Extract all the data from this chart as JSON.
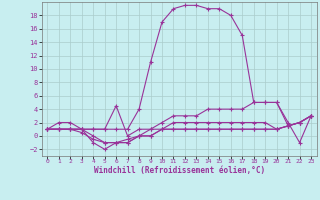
{
  "xlabel": "Windchill (Refroidissement éolien,°C)",
  "background_color": "#c8eef0",
  "line_color": "#993399",
  "grid_color": "#aacccc",
  "xmin": -0.5,
  "xmax": 23.5,
  "ymin": -3,
  "ymax": 20,
  "yticks": [
    -2,
    0,
    2,
    4,
    6,
    8,
    10,
    12,
    14,
    16,
    18
  ],
  "xticks": [
    0,
    1,
    2,
    3,
    4,
    5,
    6,
    7,
    8,
    9,
    10,
    11,
    12,
    13,
    14,
    15,
    16,
    17,
    18,
    19,
    20,
    21,
    22,
    23
  ],
  "curve_main": [
    1,
    2,
    2,
    1,
    1,
    1,
    1,
    1,
    4,
    11,
    17,
    19,
    19.5,
    19.5,
    19,
    19,
    18,
    15,
    5,
    5,
    5,
    2,
    -1,
    3
  ],
  "curve2": [
    1,
    1,
    1,
    1,
    0,
    -1,
    -1,
    -1,
    0,
    1,
    2,
    3,
    3,
    3,
    4,
    4,
    4,
    4,
    5,
    5,
    5,
    1.5,
    2,
    3
  ],
  "curve3": [
    1,
    1,
    1,
    0.5,
    -0.5,
    -1,
    -1,
    -0.5,
    0,
    0,
    1,
    2,
    2,
    2,
    2,
    2,
    2,
    2,
    2,
    2,
    1,
    1.5,
    2,
    3
  ],
  "curve4": [
    1,
    1,
    1,
    1,
    -1,
    -2,
    -1,
    -1,
    0,
    0,
    1,
    1,
    1,
    1,
    1,
    1,
    1,
    1,
    1,
    1,
    1,
    1.5,
    2,
    3
  ],
  "curve5": [
    1,
    1,
    1,
    1,
    1,
    1,
    4.5,
    0,
    1,
    1,
    1,
    1,
    1,
    1,
    1,
    1,
    1,
    1,
    1,
    1,
    1,
    1.5,
    2,
    3
  ]
}
